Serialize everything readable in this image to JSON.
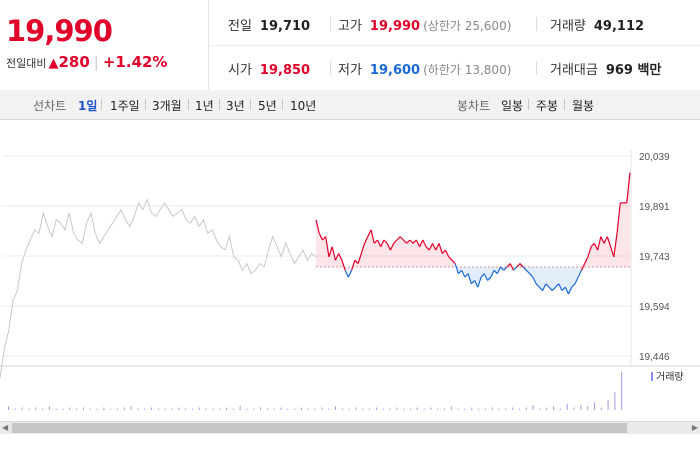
{
  "summary": {
    "current_price": "19,990",
    "change_label": "전일대비",
    "change_arrow": "▲",
    "change_amount": "280",
    "change_percent": "+1.42%",
    "stats": {
      "prev_close": {
        "label": "전일",
        "value": "19,710"
      },
      "high": {
        "label": "고가",
        "value": "19,990",
        "sub": "(상한가 25,600)"
      },
      "volume": {
        "label": "거래량",
        "value": "49,112"
      },
      "open": {
        "label": "시가",
        "value": "19,850"
      },
      "low": {
        "label": "저가",
        "value": "19,600",
        "sub": "(하한가 13,800)"
      },
      "trade_value": {
        "label": "거래대금",
        "value": "969 백만"
      }
    }
  },
  "tabs": {
    "line_chart_label": "선차트",
    "line_periods": [
      "1일",
      "1주일",
      "3개월",
      "1년",
      "3년",
      "5년",
      "10년"
    ],
    "selected_period": "1일",
    "candle_chart_label": "봉차트",
    "candle_periods": [
      "일봉",
      "주봉",
      "월봉"
    ]
  },
  "chart_data": {
    "type": "line",
    "y_ticks": [
      "20,039",
      "19,891",
      "19,743",
      "19,594",
      "19,446"
    ],
    "ylim": [
      19446,
      20039
    ],
    "baseline": 19710,
    "volume_legend": "거래량",
    "colors": {
      "up": "#e0002a",
      "down": "#1a6ad6",
      "prev": "#c8c8c8"
    },
    "prev_day": [
      19380,
      19470,
      19520,
      19610,
      19640,
      19720,
      19760,
      19790,
      19820,
      19810,
      19870,
      19830,
      19800,
      19850,
      19840,
      19820,
      19870,
      19810,
      19790,
      19780,
      19840,
      19870,
      19810,
      19780,
      19800,
      19820,
      19840,
      19860,
      19880,
      19850,
      19830,
      19860,
      19900,
      19880,
      19910,
      19870,
      19860,
      19880,
      19900,
      19880,
      19860,
      19870,
      19880,
      19850,
      19840,
      19860,
      19830,
      19850,
      19810,
      19820,
      19790,
      19770,
      19760,
      19800,
      19740,
      19730,
      19700,
      19720,
      19690,
      19700,
      19720,
      19710,
      19760,
      19800,
      19770,
      19740,
      19780,
      19750,
      19720,
      19740,
      19760,
      19730,
      19750,
      19740
    ],
    "today": [
      19850,
      19810,
      19790,
      19800,
      19740,
      19770,
      19730,
      19750,
      19730,
      19700,
      19680,
      19700,
      19730,
      19720,
      19750,
      19780,
      19800,
      19820,
      19780,
      19790,
      19770,
      19790,
      19780,
      19760,
      19780,
      19790,
      19800,
      19790,
      19780,
      19790,
      19780,
      19790,
      19770,
      19790,
      19770,
      19760,
      19780,
      19760,
      19780,
      19750,
      19760,
      19740,
      19730,
      19720,
      19690,
      19700,
      19680,
      19690,
      19660,
      19670,
      19650,
      19680,
      19690,
      19670,
      19680,
      19700,
      19690,
      19710,
      19700,
      19710,
      19720,
      19700,
      19710,
      19720,
      19710,
      19700,
      19690,
      19680,
      19660,
      19650,
      19640,
      19660,
      19650,
      19640,
      19650,
      19660,
      19640,
      19650,
      19630,
      19650,
      19660,
      19680,
      19700,
      19720,
      19740,
      19770,
      19780,
      19760,
      19800,
      19780,
      19800,
      19770,
      19740,
      19810,
      19900,
      19900,
      19900,
      19990
    ],
    "volume_bars": [
      3,
      1,
      2,
      1,
      2,
      1,
      3,
      1,
      1,
      2,
      1,
      2,
      1,
      1,
      2,
      1,
      1,
      2,
      3,
      1,
      1,
      2,
      1,
      1,
      1,
      2,
      1,
      1,
      2,
      1,
      1,
      1,
      2,
      1,
      3,
      1,
      1,
      2,
      1,
      1,
      2,
      1,
      1,
      2,
      1,
      1,
      2,
      1,
      3,
      1,
      1,
      2,
      1,
      1,
      2,
      1,
      1,
      2,
      1,
      1,
      2,
      1,
      2,
      1,
      1,
      3,
      1,
      1,
      2,
      1,
      1,
      2,
      1,
      1,
      2,
      1,
      2,
      4,
      1,
      2,
      3,
      1,
      5,
      2,
      4,
      3,
      6,
      2,
      8,
      14,
      30
    ]
  }
}
